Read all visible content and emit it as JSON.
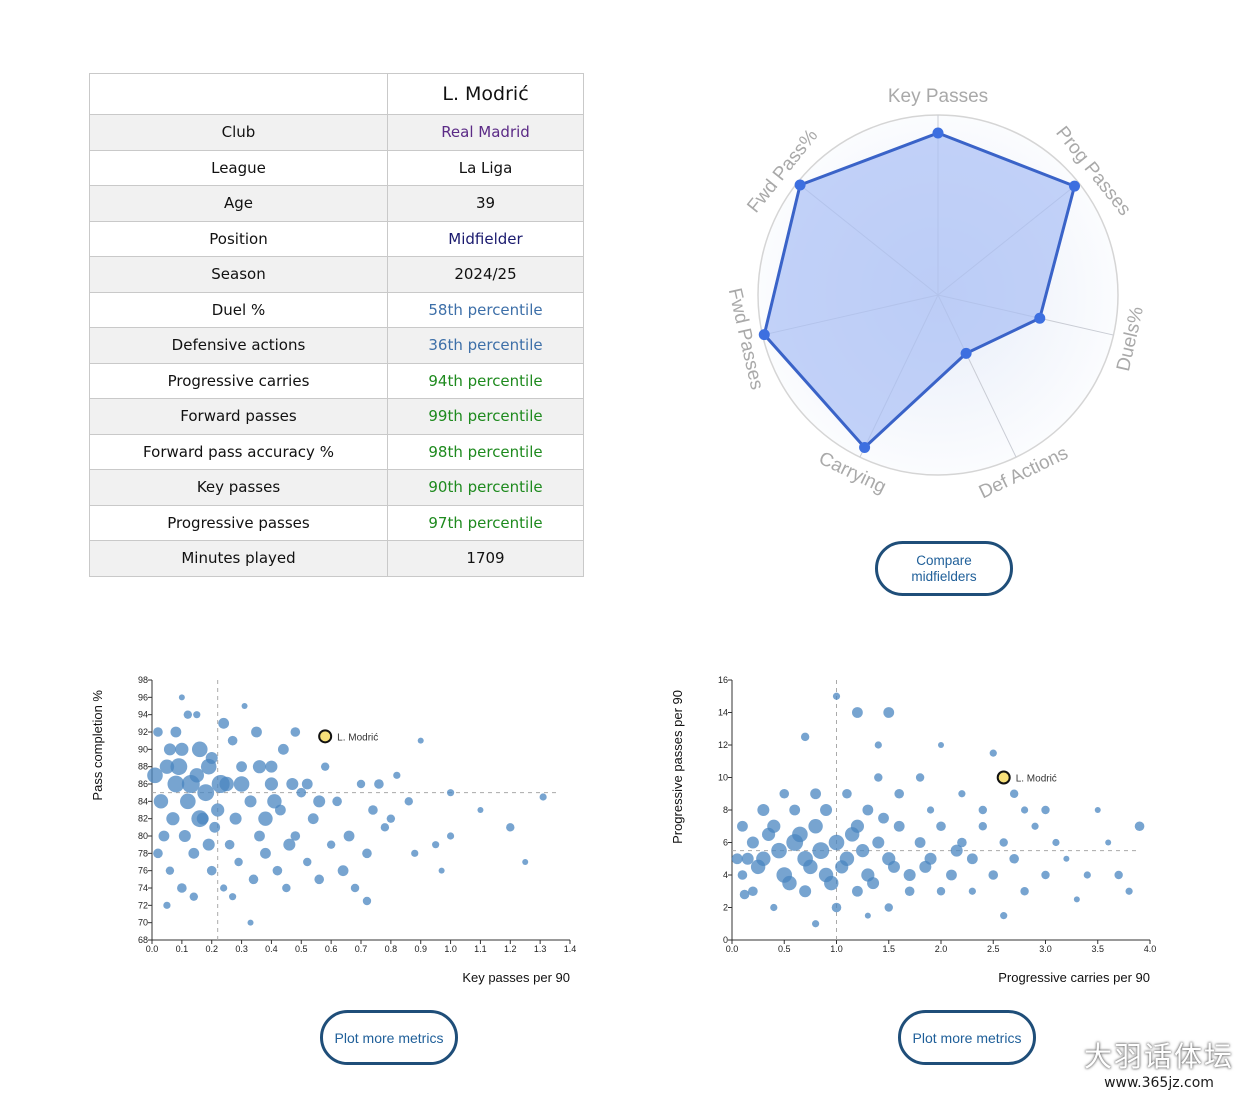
{
  "table": {
    "header": "L. Modrić",
    "rows": [
      {
        "label": "Club",
        "value": "Real Madrid",
        "color": "#5b2a86"
      },
      {
        "label": "League",
        "value": "La Liga",
        "color": "#111111"
      },
      {
        "label": "Age",
        "value": "39",
        "color": "#111111"
      },
      {
        "label": "Position",
        "value": "Midfielder",
        "color": "#1a1a6e"
      },
      {
        "label": "Season",
        "value": "2024/25",
        "color": "#111111"
      },
      {
        "label": "Duel %",
        "value": "58th percentile",
        "color": "#3d6fa8"
      },
      {
        "label": "Defensive actions",
        "value": "36th percentile",
        "color": "#3d6fa8"
      },
      {
        "label": "Progressive carries",
        "value": "94th percentile",
        "color": "#1e8a1e"
      },
      {
        "label": "Forward passes",
        "value": "99th percentile",
        "color": "#1e8a1e"
      },
      {
        "label": "Forward pass accuracy %",
        "value": "98th percentile",
        "color": "#1e8a1e"
      },
      {
        "label": "Key passes",
        "value": "90th percentile",
        "color": "#1e8a1e"
      },
      {
        "label": "Progressive passes",
        "value": "97th percentile",
        "color": "#1e8a1e"
      },
      {
        "label": "Minutes played",
        "value": "1709",
        "color": "#111111"
      }
    ]
  },
  "buttons": {
    "compare": "Compare\nmidfielders",
    "plot_more_1": "Plot more metrics",
    "plot_more_2": "Plot more metrics"
  },
  "watermark": {
    "main": "大羽话体坛",
    "url": "www.365jz.com"
  },
  "chart_data": [
    {
      "type": "radar",
      "axes": [
        "Key Passes",
        "Prog Passes",
        "Duels%",
        "Def Actions",
        "Carrying",
        "Fwd Passes",
        "Fwd Pass%"
      ],
      "series": [
        {
          "values": [
            90,
            97,
            58,
            36,
            94,
            99,
            98
          ]
        }
      ],
      "range": [
        0,
        100
      ],
      "colors": {
        "line": "#3a63c8",
        "fill": "#a9bff5",
        "point": "#3d6fe0"
      }
    },
    {
      "type": "scatter",
      "xlabel": "Key passes per 90",
      "ylabel": "Pass completion %",
      "xlim": [
        0,
        1.4
      ],
      "ylim": [
        68,
        98
      ],
      "xticks": [
        "0.0",
        "0.1",
        "0.2",
        "0.3",
        "0.4",
        "0.5",
        "0.6",
        "0.7",
        "0.8",
        "0.9",
        "1.0",
        "1.1",
        "1.2",
        "1.3",
        "1.4"
      ],
      "yticks": [
        "68",
        "70",
        "72",
        "74",
        "76",
        "78",
        "80",
        "82",
        "84",
        "86",
        "88",
        "90",
        "92",
        "94",
        "96",
        "98"
      ],
      "ref_lines": {
        "x": 0.22,
        "y": 85
      },
      "highlight": {
        "label": "L. Modrić",
        "x": 0.58,
        "y": 91.5
      },
      "points": [
        [
          0.02,
          92,
          8
        ],
        [
          0.05,
          88,
          12
        ],
        [
          0.08,
          86,
          14
        ],
        [
          0.1,
          90,
          11
        ],
        [
          0.12,
          84,
          13
        ],
        [
          0.15,
          87,
          12
        ],
        [
          0.18,
          85,
          14
        ],
        [
          0.2,
          89,
          10
        ],
        [
          0.22,
          83,
          11
        ],
        [
          0.25,
          86,
          12
        ],
        [
          0.28,
          82,
          10
        ],
        [
          0.3,
          88,
          9
        ],
        [
          0.33,
          84,
          10
        ],
        [
          0.36,
          80,
          9
        ],
        [
          0.4,
          86,
          11
        ],
        [
          0.43,
          83,
          9
        ],
        [
          0.46,
          79,
          10
        ],
        [
          0.5,
          85,
          8
        ],
        [
          0.54,
          82,
          9
        ],
        [
          0.58,
          88,
          7
        ],
        [
          0.62,
          84,
          8
        ],
        [
          0.66,
          80,
          9
        ],
        [
          0.7,
          86,
          7
        ],
        [
          0.74,
          83,
          8
        ],
        [
          0.78,
          81,
          7
        ],
        [
          0.82,
          87,
          6
        ],
        [
          0.86,
          84,
          7
        ],
        [
          0.9,
          91,
          5
        ],
        [
          0.95,
          79,
          6
        ],
        [
          1.0,
          85,
          6
        ],
        [
          1.1,
          83,
          5
        ],
        [
          1.2,
          81,
          7
        ],
        [
          1.25,
          77,
          5
        ],
        [
          1.31,
          84.5,
          6
        ],
        [
          0.04,
          80,
          9
        ],
        [
          0.06,
          76,
          7
        ],
        [
          0.1,
          74,
          8
        ],
        [
          0.14,
          78,
          9
        ],
        [
          0.17,
          82,
          10
        ],
        [
          0.2,
          76,
          8
        ],
        [
          0.24,
          93,
          9
        ],
        [
          0.27,
          91,
          8
        ],
        [
          0.31,
          95,
          5
        ],
        [
          0.35,
          92,
          9
        ],
        [
          0.12,
          94,
          7
        ],
        [
          0.08,
          92,
          9
        ],
        [
          0.16,
          90,
          13
        ],
        [
          0.19,
          88,
          13
        ],
        [
          0.03,
          84,
          12
        ],
        [
          0.07,
          82,
          11
        ],
        [
          0.11,
          80,
          10
        ],
        [
          0.13,
          86,
          15
        ],
        [
          0.09,
          88,
          14
        ],
        [
          0.21,
          81,
          9
        ],
        [
          0.26,
          79,
          8
        ],
        [
          0.29,
          77,
          7
        ],
        [
          0.34,
          75,
          8
        ],
        [
          0.38,
          78,
          9
        ],
        [
          0.42,
          76,
          8
        ],
        [
          0.45,
          74,
          7
        ],
        [
          0.48,
          80,
          8
        ],
        [
          0.52,
          77,
          7
        ],
        [
          0.56,
          75,
          8
        ],
        [
          0.6,
          79,
          7
        ],
        [
          0.64,
          76,
          9
        ],
        [
          0.68,
          74,
          7
        ],
        [
          0.72,
          78,
          8
        ],
        [
          0.72,
          72.5,
          7
        ],
        [
          0.33,
          70,
          5
        ],
        [
          0.4,
          88,
          10
        ],
        [
          0.44,
          90,
          9
        ],
        [
          0.48,
          92,
          8
        ],
        [
          0.52,
          86,
          9
        ],
        [
          0.56,
          84,
          10
        ],
        [
          0.76,
          86,
          8
        ],
        [
          0.8,
          82,
          7
        ],
        [
          0.88,
          78,
          6
        ],
        [
          0.97,
          76,
          5
        ],
        [
          1.0,
          80,
          6
        ],
        [
          0.06,
          90,
          10
        ],
        [
          0.1,
          96,
          5
        ],
        [
          0.15,
          94,
          6
        ],
        [
          0.23,
          86,
          15
        ],
        [
          0.16,
          82,
          14
        ],
        [
          0.19,
          79,
          10
        ],
        [
          0.14,
          73,
          7
        ],
        [
          0.24,
          74,
          6
        ],
        [
          0.38,
          82,
          12
        ],
        [
          0.3,
          86,
          13
        ],
        [
          0.36,
          88,
          11
        ],
        [
          0.41,
          84,
          12
        ],
        [
          0.47,
          86,
          10
        ],
        [
          0.01,
          87,
          13
        ],
        [
          0.02,
          78,
          8
        ],
        [
          0.05,
          72,
          6
        ],
        [
          0.27,
          73,
          6
        ]
      ]
    },
    {
      "type": "scatter",
      "xlabel": "Progressive carries per 90",
      "ylabel": "Progressive passes per 90",
      "xlim": [
        0,
        4
      ],
      "ylim": [
        0,
        16
      ],
      "xticks": [
        "0.0",
        "0.5",
        "1.0",
        "1.5",
        "2.0",
        "2.5",
        "3.0",
        "3.5",
        "4.0"
      ],
      "yticks": [
        "0",
        "2",
        "4",
        "6",
        "8",
        "10",
        "12",
        "14",
        "16"
      ],
      "ref_lines": {
        "x": 1.0,
        "y": 5.5
      },
      "highlight": {
        "label": "L. Modrić",
        "x": 2.6,
        "y": 10
      },
      "points": [
        [
          0.1,
          4,
          8
        ],
        [
          0.2,
          6,
          10
        ],
        [
          0.3,
          5,
          12
        ],
        [
          0.4,
          7,
          11
        ],
        [
          0.5,
          4,
          13
        ],
        [
          0.6,
          6,
          14
        ],
        [
          0.7,
          5,
          13
        ],
        [
          0.8,
          7,
          12
        ],
        [
          0.9,
          4,
          12
        ],
        [
          1.0,
          6,
          13
        ],
        [
          1.1,
          5,
          12
        ],
        [
          1.2,
          7,
          11
        ],
        [
          1.3,
          4,
          11
        ],
        [
          1.4,
          6,
          10
        ],
        [
          1.5,
          5,
          11
        ],
        [
          1.6,
          7,
          9
        ],
        [
          1.7,
          4,
          10
        ],
        [
          1.8,
          6,
          9
        ],
        [
          1.9,
          5,
          10
        ],
        [
          2.0,
          7,
          8
        ],
        [
          2.1,
          4,
          9
        ],
        [
          2.2,
          6,
          8
        ],
        [
          2.3,
          5,
          9
        ],
        [
          2.4,
          7,
          7
        ],
        [
          2.5,
          4,
          8
        ],
        [
          2.6,
          6,
          7
        ],
        [
          2.7,
          5,
          8
        ],
        [
          2.8,
          3,
          7
        ],
        [
          2.9,
          7,
          6
        ],
        [
          3.0,
          8,
          7
        ],
        [
          3.1,
          6,
          6
        ],
        [
          3.2,
          5,
          5
        ],
        [
          3.4,
          4,
          6
        ],
        [
          3.5,
          8,
          5
        ],
        [
          3.6,
          6,
          5
        ],
        [
          3.7,
          4,
          7
        ],
        [
          3.9,
          7,
          8
        ],
        [
          3.8,
          3,
          6
        ],
        [
          1.0,
          15,
          6
        ],
        [
          1.2,
          14,
          9
        ],
        [
          1.5,
          14,
          9
        ],
        [
          0.7,
          12.5,
          7
        ],
        [
          1.4,
          12,
          6
        ],
        [
          2.0,
          12,
          5
        ],
        [
          2.5,
          11.5,
          6
        ],
        [
          0.1,
          7,
          9
        ],
        [
          0.2,
          3,
          8
        ],
        [
          0.4,
          2,
          6
        ],
        [
          0.5,
          9,
          8
        ],
        [
          0.6,
          8,
          9
        ],
        [
          0.7,
          3,
          10
        ],
        [
          0.8,
          9,
          9
        ],
        [
          0.9,
          8,
          10
        ],
        [
          1.0,
          2,
          8
        ],
        [
          1.1,
          9,
          8
        ],
        [
          1.2,
          3,
          9
        ],
        [
          1.3,
          8,
          9
        ],
        [
          1.4,
          10,
          7
        ],
        [
          1.5,
          2,
          7
        ],
        [
          1.6,
          9,
          8
        ],
        [
          1.7,
          3,
          8
        ],
        [
          1.8,
          10,
          7
        ],
        [
          1.9,
          8,
          6
        ],
        [
          2.0,
          3,
          7
        ],
        [
          2.2,
          9,
          6
        ],
        [
          2.3,
          3,
          6
        ],
        [
          2.4,
          8,
          7
        ],
        [
          2.7,
          9,
          7
        ],
        [
          2.8,
          8,
          6
        ],
        [
          3.0,
          4,
          7
        ],
        [
          0.3,
          8,
          10
        ],
        [
          0.25,
          4.5,
          12
        ],
        [
          0.45,
          5.5,
          13
        ],
        [
          0.55,
          3.5,
          12
        ],
        [
          0.65,
          6.5,
          13
        ],
        [
          0.75,
          4.5,
          12
        ],
        [
          0.85,
          5.5,
          14
        ],
        [
          0.95,
          3.5,
          12
        ],
        [
          1.05,
          4.5,
          11
        ],
        [
          1.15,
          6.5,
          12
        ],
        [
          0.35,
          6.5,
          11
        ],
        [
          0.15,
          5,
          10
        ],
        [
          1.25,
          5.5,
          11
        ],
        [
          1.35,
          3.5,
          10
        ],
        [
          1.45,
          7.5,
          9
        ],
        [
          1.55,
          4.5,
          10
        ],
        [
          0.8,
          1,
          6
        ],
        [
          1.3,
          1.5,
          5
        ],
        [
          0.05,
          5,
          9
        ],
        [
          2.6,
          1.5,
          6
        ],
        [
          3.3,
          2.5,
          5
        ],
        [
          2.15,
          5.5,
          10
        ],
        [
          1.85,
          4.5,
          10
        ],
        [
          0.12,
          2.8,
          8
        ]
      ]
    }
  ]
}
